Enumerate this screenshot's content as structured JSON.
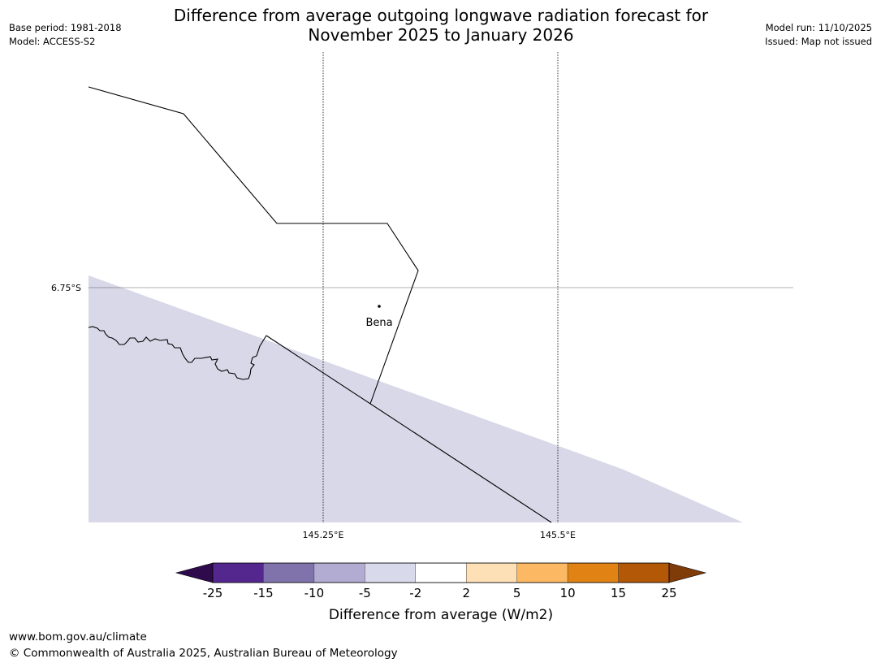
{
  "header": {
    "base_period": "Base period: 1981-2018",
    "model": "Model: ACCESS-S2",
    "title_line1": "Difference from average outgoing longwave radiation forecast for",
    "title_line2": "November 2025 to January 2026",
    "model_run": "Model run: 11/10/2025",
    "issued": "Issued: Map not issued"
  },
  "map": {
    "lat_label": "6.75°S",
    "lon_labels": [
      "145.25°E",
      "145.5°E"
    ],
    "town": "Bena",
    "shaded_category": "-5 to -2",
    "colors": {
      "shade": "#d8d8e8",
      "border": "#000000",
      "graticule": "#000000"
    }
  },
  "legend": {
    "title": "Difference from average (W/m2)",
    "ticks": [
      "-25",
      "-15",
      "-10",
      "-5",
      "-2",
      "2",
      "5",
      "10",
      "15",
      "25"
    ],
    "colors": {
      "below": "#2f0b4e",
      "bins": [
        "#54278f",
        "#8073ac",
        "#b2abd2",
        "#d8daeb",
        "#ffffff",
        "#fee0b6",
        "#fdb863",
        "#e08214",
        "#b35806"
      ],
      "above": "#7f3b08"
    }
  },
  "footer": {
    "url": "www.bom.gov.au/climate",
    "copyright": "© Commonwealth of Australia 2025, Australian Bureau of Meteorology"
  }
}
